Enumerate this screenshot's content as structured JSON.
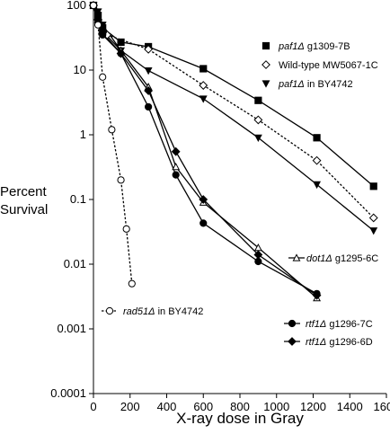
{
  "chart_data": {
    "type": "line",
    "ylabel_lines": [
      "Percent",
      "Survival"
    ],
    "xlabel": "X-ray dose in Gray",
    "xlim": [
      0,
      1600
    ],
    "ylim": [
      0.0001,
      100
    ],
    "yscale": "log",
    "xticks": [
      0,
      200,
      400,
      600,
      800,
      1000,
      1200,
      1400,
      1600
    ],
    "yticks": [
      {
        "value": 0.0001,
        "label": "0.0001"
      },
      {
        "value": 0.001,
        "label": "0.001"
      },
      {
        "value": 0.01,
        "label": "0.01"
      },
      {
        "value": 0.1,
        "label": "0.1"
      },
      {
        "value": 1,
        "label": "1"
      },
      {
        "value": 10,
        "label": "10"
      },
      {
        "value": 100,
        "label": "100"
      }
    ],
    "series": [
      {
        "name_gene": "paf1",
        "name_rest": " g1309-7B",
        "marker": "square",
        "fill": "#000000",
        "dash": false,
        "legend_pos": "upper-right-1",
        "x": [
          0,
          25,
          50,
          150,
          300,
          600,
          900,
          1220,
          1530
        ],
        "y": [
          100,
          70,
          45,
          27,
          23,
          10.5,
          3.4,
          0.9,
          0.16
        ]
      },
      {
        "name_gene": "",
        "name_rest": "Wild-type MW5067-1C",
        "marker": "diamond",
        "fill": "#ffffff",
        "dash": true,
        "legend_pos": "upper-right-2",
        "x": [
          0,
          25,
          75,
          300,
          600,
          900,
          1220,
          1530
        ],
        "y": [
          100,
          60,
          35,
          21,
          5.8,
          1.7,
          0.4,
          0.052
        ]
      },
      {
        "name_gene": "paf1",
        "name_rest": " in BY4742",
        "marker": "triangle-down",
        "fill": "#000000",
        "dash": false,
        "legend_pos": "upper-right-3",
        "x": [
          0,
          25,
          50,
          150,
          300,
          600,
          900,
          1220,
          1530
        ],
        "y": [
          100,
          80,
          50,
          20,
          9.8,
          3.6,
          0.9,
          0.17,
          0.033
        ]
      },
      {
        "name_gene": "dot1",
        "name_rest": " g1295-6C",
        "marker": "triangle-up",
        "fill": "#ffffff",
        "dash": false,
        "legend_pos": "mid-right",
        "x": [
          0,
          25,
          50,
          150,
          300,
          450,
          600,
          900,
          1220
        ],
        "y": [
          100,
          60,
          40,
          20,
          5.5,
          0.32,
          0.09,
          0.018,
          0.003
        ]
      },
      {
        "name_gene": "rtf1",
        "name_rest": " g1296-7C",
        "marker": "circle",
        "fill": "#000000",
        "dash": false,
        "legend_pos": "lower-right-1",
        "x": [
          0,
          25,
          50,
          150,
          300,
          450,
          600,
          900,
          1220
        ],
        "y": [
          100,
          55,
          35,
          18,
          2.7,
          0.24,
          0.043,
          0.011,
          0.0035
        ]
      },
      {
        "name_gene": "rtf1",
        "name_rest": " g1296-6D",
        "marker": "diamond",
        "fill": "#000000",
        "dash": false,
        "legend_pos": "lower-right-2",
        "x": [
          0,
          25,
          50,
          150,
          300,
          450,
          600,
          900,
          1220
        ],
        "y": [
          100,
          60,
          38,
          18,
          4.8,
          0.55,
          0.1,
          0.014,
          0.0033
        ]
      },
      {
        "name_gene": "rad51",
        "name_rest": " in BY4742",
        "marker": "circle",
        "fill": "#ffffff",
        "dash": true,
        "legend_pos": "lower-left",
        "x": [
          0,
          25,
          50,
          100,
          150,
          180,
          210
        ],
        "y": [
          100,
          50,
          7.8,
          1.2,
          0.2,
          0.035,
          0.005
        ]
      }
    ],
    "legend": [
      {
        "series": 0,
        "line": false
      },
      {
        "series": 1,
        "line": false
      },
      {
        "series": 2,
        "line": false
      },
      {
        "series": 3,
        "line": true
      },
      {
        "series": 6,
        "line": true
      },
      {
        "series": 4,
        "line": true
      },
      {
        "series": 5,
        "line": true
      }
    ],
    "delta": "Δ"
  }
}
